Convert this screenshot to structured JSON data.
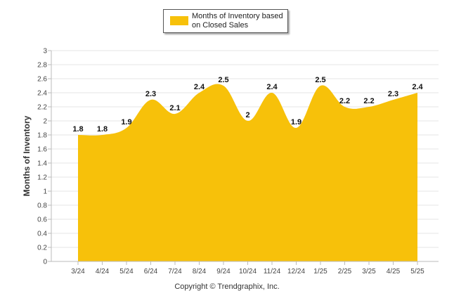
{
  "chart_data": {
    "type": "area",
    "categories": [
      "3/24",
      "4/24",
      "5/24",
      "6/24",
      "7/24",
      "8/24",
      "9/24",
      "10/24",
      "11/24",
      "12/24",
      "1/25",
      "2/25",
      "3/25",
      "4/25",
      "5/25"
    ],
    "series": [
      {
        "name": "Months of Inventory based on Closed Sales",
        "values": [
          1.8,
          1.8,
          1.9,
          2.3,
          2.1,
          2.4,
          2.5,
          2,
          2.4,
          1.9,
          2.5,
          2.2,
          2.2,
          2.3,
          2.4
        ]
      }
    ],
    "data_labels": [
      "1.8",
      "1.8",
      "1.9",
      "2.3",
      "2.1",
      "2.4",
      "2.5",
      "2",
      "2.4",
      "1.9",
      "2.5",
      "2.2",
      "2.2",
      "2.3",
      "2.4"
    ],
    "ylabel": "Months of Inventory",
    "xlabel": "",
    "ylim": [
      0,
      3
    ],
    "yticks": [
      "0",
      "0.2",
      "0.4",
      "0.6",
      "0.8",
      "1",
      "1.2",
      "1.4",
      "1.6",
      "1.8",
      "2",
      "2.2",
      "2.4",
      "2.6",
      "2.8",
      "3"
    ],
    "grid": true,
    "legend_position": "top-center",
    "colors": {
      "area": "#f7c10a",
      "grid": "#e6e6e6",
      "axis": "#bbbbbb"
    }
  },
  "legend": {
    "label": "Months of Inventory based on Closed Sales"
  },
  "footer": {
    "copyright": "Copyright © Trendgraphix, Inc."
  }
}
